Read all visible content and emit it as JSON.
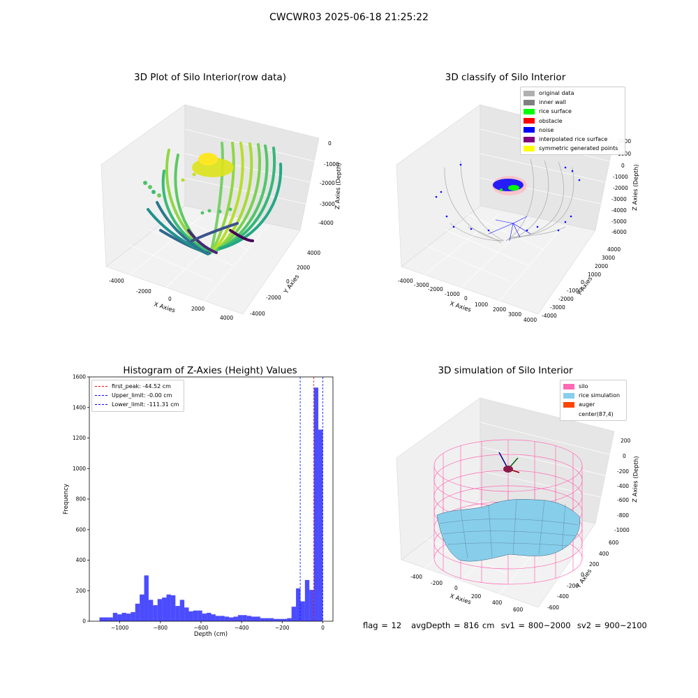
{
  "suptitle": "CWCWR03 2025-06-18 21:25:22",
  "footer": "flag = 12   avgDepth = 816 cm  sv1 = 800~2000  sv2 = 900~2100",
  "chart_data": [
    {
      "type": "scatter",
      "title": "3D Plot of Silo Interior(row data)",
      "xlabel": "X Axies",
      "ylabel": "Y Axies",
      "zlabel": "Z Axies (Depth)",
      "x_ticks": [
        "-4000",
        "-2000",
        "0",
        "2000",
        "4000"
      ],
      "y_ticks": [
        "-4000",
        "-2000",
        "0",
        "2000",
        "4000"
      ],
      "z_ticks": [
        "0",
        "-1000",
        "-2000",
        "-3000",
        "-4000"
      ],
      "colormap": "viridis",
      "grid": true
    },
    {
      "type": "scatter",
      "title": "3D classify of Silo Interior",
      "xlabel": "X Axies",
      "ylabel": "Y Axies",
      "zlabel": "Z Axies (Depth)",
      "x_ticks": [
        "-4000",
        "-3000",
        "-2000",
        "-1000",
        "0",
        "1000",
        "2000",
        "3000",
        "4000"
      ],
      "y_ticks": [
        "4000",
        "3000",
        "2000",
        "1000",
        "0",
        "-1000",
        "-2000",
        "-3000",
        "-4000"
      ],
      "z_ticks": [
        "2000",
        "1000",
        "0",
        "-1000",
        "-2000",
        "-3000",
        "-4000",
        "-5000",
        "-6000"
      ],
      "legend_position": "top-right",
      "legend": [
        {
          "label": "original data",
          "color": "#b0b0b0"
        },
        {
          "label": "inner wall",
          "color": "#808080"
        },
        {
          "label": "rice surface",
          "color": "#00ff00"
        },
        {
          "label": "obstacle",
          "color": "#ff0000"
        },
        {
          "label": "noise",
          "color": "#0000ff"
        },
        {
          "label": "interpolated rice surface",
          "color": "#800080"
        },
        {
          "label": "symmetric generated points",
          "color": "#ffff00"
        }
      ],
      "grid": true
    },
    {
      "type": "bar",
      "title": "Histogram of Z-Axies (Height) Values",
      "xlabel": "Depth (cm)",
      "ylabel": "Frequency",
      "xlim": [
        -1150,
        50
      ],
      "ylim": [
        0,
        1600
      ],
      "x_ticks": [
        -1000,
        -800,
        -600,
        -400,
        -200,
        0
      ],
      "y_ticks": [
        0,
        200,
        400,
        600,
        800,
        1000,
        1200,
        1400,
        1600
      ],
      "bar_color": "#0000ff",
      "bin_width": 22,
      "bins_start": [
        -1100,
        -1078,
        -1056,
        -1034,
        -1012,
        -990,
        -968,
        -946,
        -924,
        -902,
        -880,
        -858,
        -836,
        -814,
        -792,
        -770,
        -748,
        -726,
        -704,
        -682,
        -660,
        -638,
        -616,
        -594,
        -572,
        -550,
        -528,
        -506,
        -484,
        -462,
        -440,
        -418,
        -396,
        -374,
        -352,
        -330,
        -308,
        -286,
        -264,
        -242,
        -220,
        -198,
        -176,
        -154,
        -132,
        -110,
        -88,
        -66,
        -44,
        -22
      ],
      "values": [
        25,
        25,
        25,
        55,
        45,
        55,
        50,
        60,
        115,
        175,
        300,
        140,
        105,
        145,
        155,
        175,
        170,
        100,
        140,
        90,
        65,
        70,
        70,
        50,
        55,
        45,
        35,
        35,
        30,
        25,
        30,
        40,
        40,
        35,
        30,
        30,
        20,
        20,
        20,
        15,
        15,
        15,
        20,
        95,
        215,
        130,
        270,
        205,
        1530,
        1255
      ],
      "legend_position": "top-left",
      "lines": [
        {
          "label": "first_peak: -44.52 cm",
          "x": -44.52,
          "color": "#ff0000"
        },
        {
          "label": "Upper_limit: -0.00 cm",
          "x": 0,
          "color": "#0000ff"
        },
        {
          "label": "Lower_limit: -111.31 cm",
          "x": -111.31,
          "color": "#0000ff"
        }
      ]
    },
    {
      "type": "surface",
      "title": "3D simulation of Silo Interior",
      "xlabel": "X Axies",
      "ylabel": "Y Axies",
      "zlabel": "Z Axies (Depth)",
      "x_ticks": [
        "-400",
        "-200",
        "0",
        "200",
        "400",
        "600"
      ],
      "y_ticks": [
        "600",
        "400",
        "200",
        "0",
        "-200",
        "-400",
        "-600"
      ],
      "z_ticks": [
        "200",
        "0",
        "-200",
        "-400",
        "-600",
        "-800",
        "-1000"
      ],
      "legend_position": "top-right",
      "legend": [
        {
          "label": "silo",
          "color": "#ff69b4"
        },
        {
          "label": "rice simulation",
          "color": "#87ceeb"
        },
        {
          "label": "auger",
          "color": "#ff4500"
        },
        {
          "label": "center(87,4)",
          "color": ""
        }
      ]
    }
  ]
}
